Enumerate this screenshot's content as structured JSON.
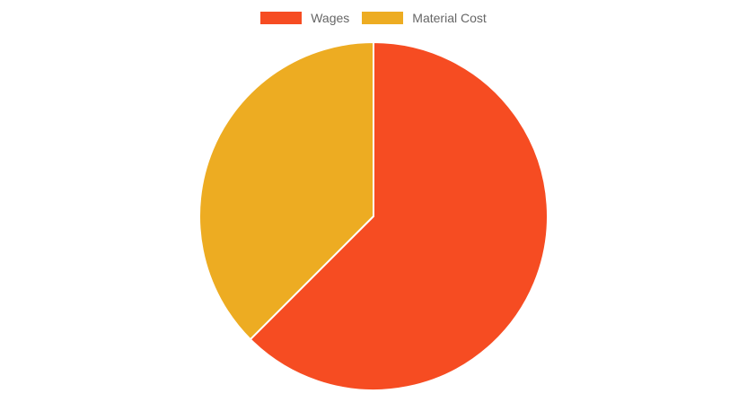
{
  "chart_data": {
    "type": "pie",
    "title": "",
    "labels": [
      "Wages",
      "Material Cost"
    ],
    "values": [
      62.5,
      37.5
    ],
    "colors": [
      "#f64c22",
      "#edac22"
    ],
    "legend": {
      "placement": "top"
    }
  }
}
